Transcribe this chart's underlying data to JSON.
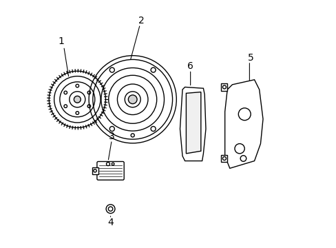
{
  "title": "",
  "background_color": "#ffffff",
  "line_color": "#000000",
  "line_width": 1.0,
  "label_fontsize": 10,
  "figsize": [
    4.89,
    3.6
  ],
  "dpi": 100
}
